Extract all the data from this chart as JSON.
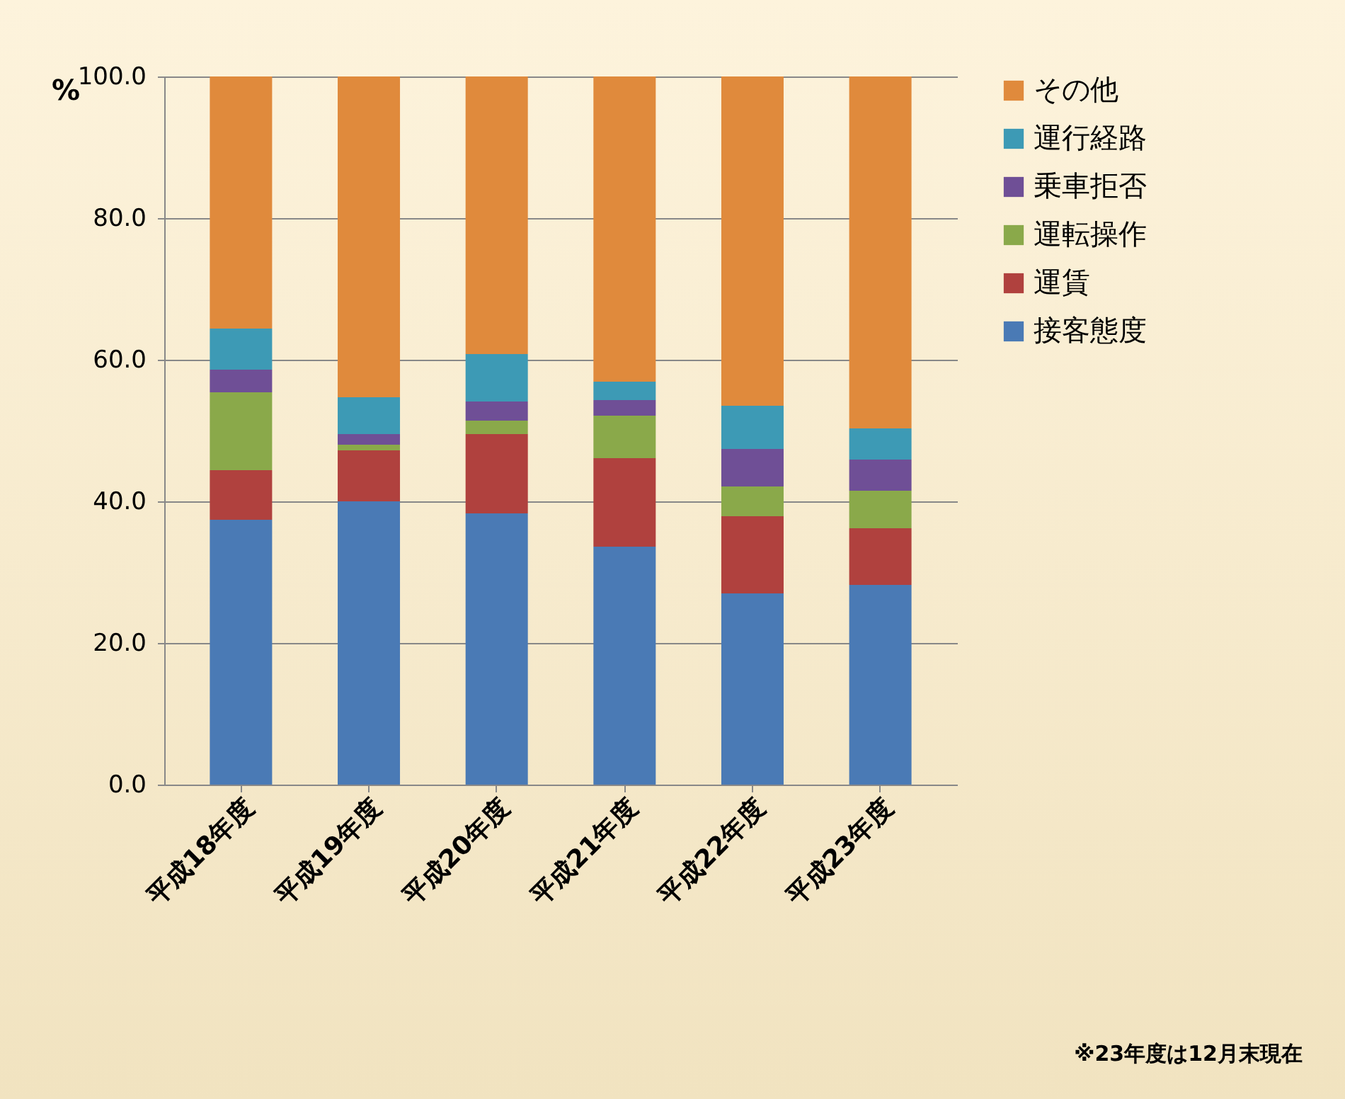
{
  "chart_data": {
    "type": "bar",
    "stacked": true,
    "ylabel": "%",
    "categories": [
      "平成18年度",
      "平成19年度",
      "平成20年度",
      "平成21年度",
      "平成22年度",
      "平成23年度"
    ],
    "series": [
      {
        "name": "接客態度",
        "color": "#4a7ab5",
        "values": [
          37.4,
          40.0,
          38.3,
          33.6,
          27.0,
          28.2
        ]
      },
      {
        "name": "運賃",
        "color": "#b0413e",
        "values": [
          7.0,
          7.2,
          11.2,
          12.5,
          10.9,
          8.0
        ]
      },
      {
        "name": "運転操作",
        "color": "#8aa94a",
        "values": [
          11.0,
          0.8,
          1.9,
          6.0,
          4.2,
          5.3
        ]
      },
      {
        "name": "乗車拒否",
        "color": "#6f4f96",
        "values": [
          3.2,
          1.5,
          2.7,
          2.2,
          5.3,
          4.4
        ]
      },
      {
        "name": "運行経路",
        "color": "#3d9ab5",
        "values": [
          5.8,
          5.2,
          6.7,
          2.6,
          6.1,
          4.4
        ]
      },
      {
        "name": "その他",
        "color": "#e08a3c",
        "values": [
          35.6,
          45.3,
          39.2,
          43.1,
          46.5,
          49.7
        ]
      }
    ],
    "ylim": [
      0,
      100
    ],
    "yticks": [
      {
        "value": 0,
        "label": "0.0"
      },
      {
        "value": 20,
        "label": "20.0"
      },
      {
        "value": 40,
        "label": "40.0"
      },
      {
        "value": 60,
        "label": "60.0"
      },
      {
        "value": 80,
        "label": "80.0"
      },
      {
        "value": 100,
        "label": "100.0"
      }
    ],
    "grid": "y",
    "legend": "top right",
    "annotations": [
      "※23年度は12月末現在"
    ]
  }
}
